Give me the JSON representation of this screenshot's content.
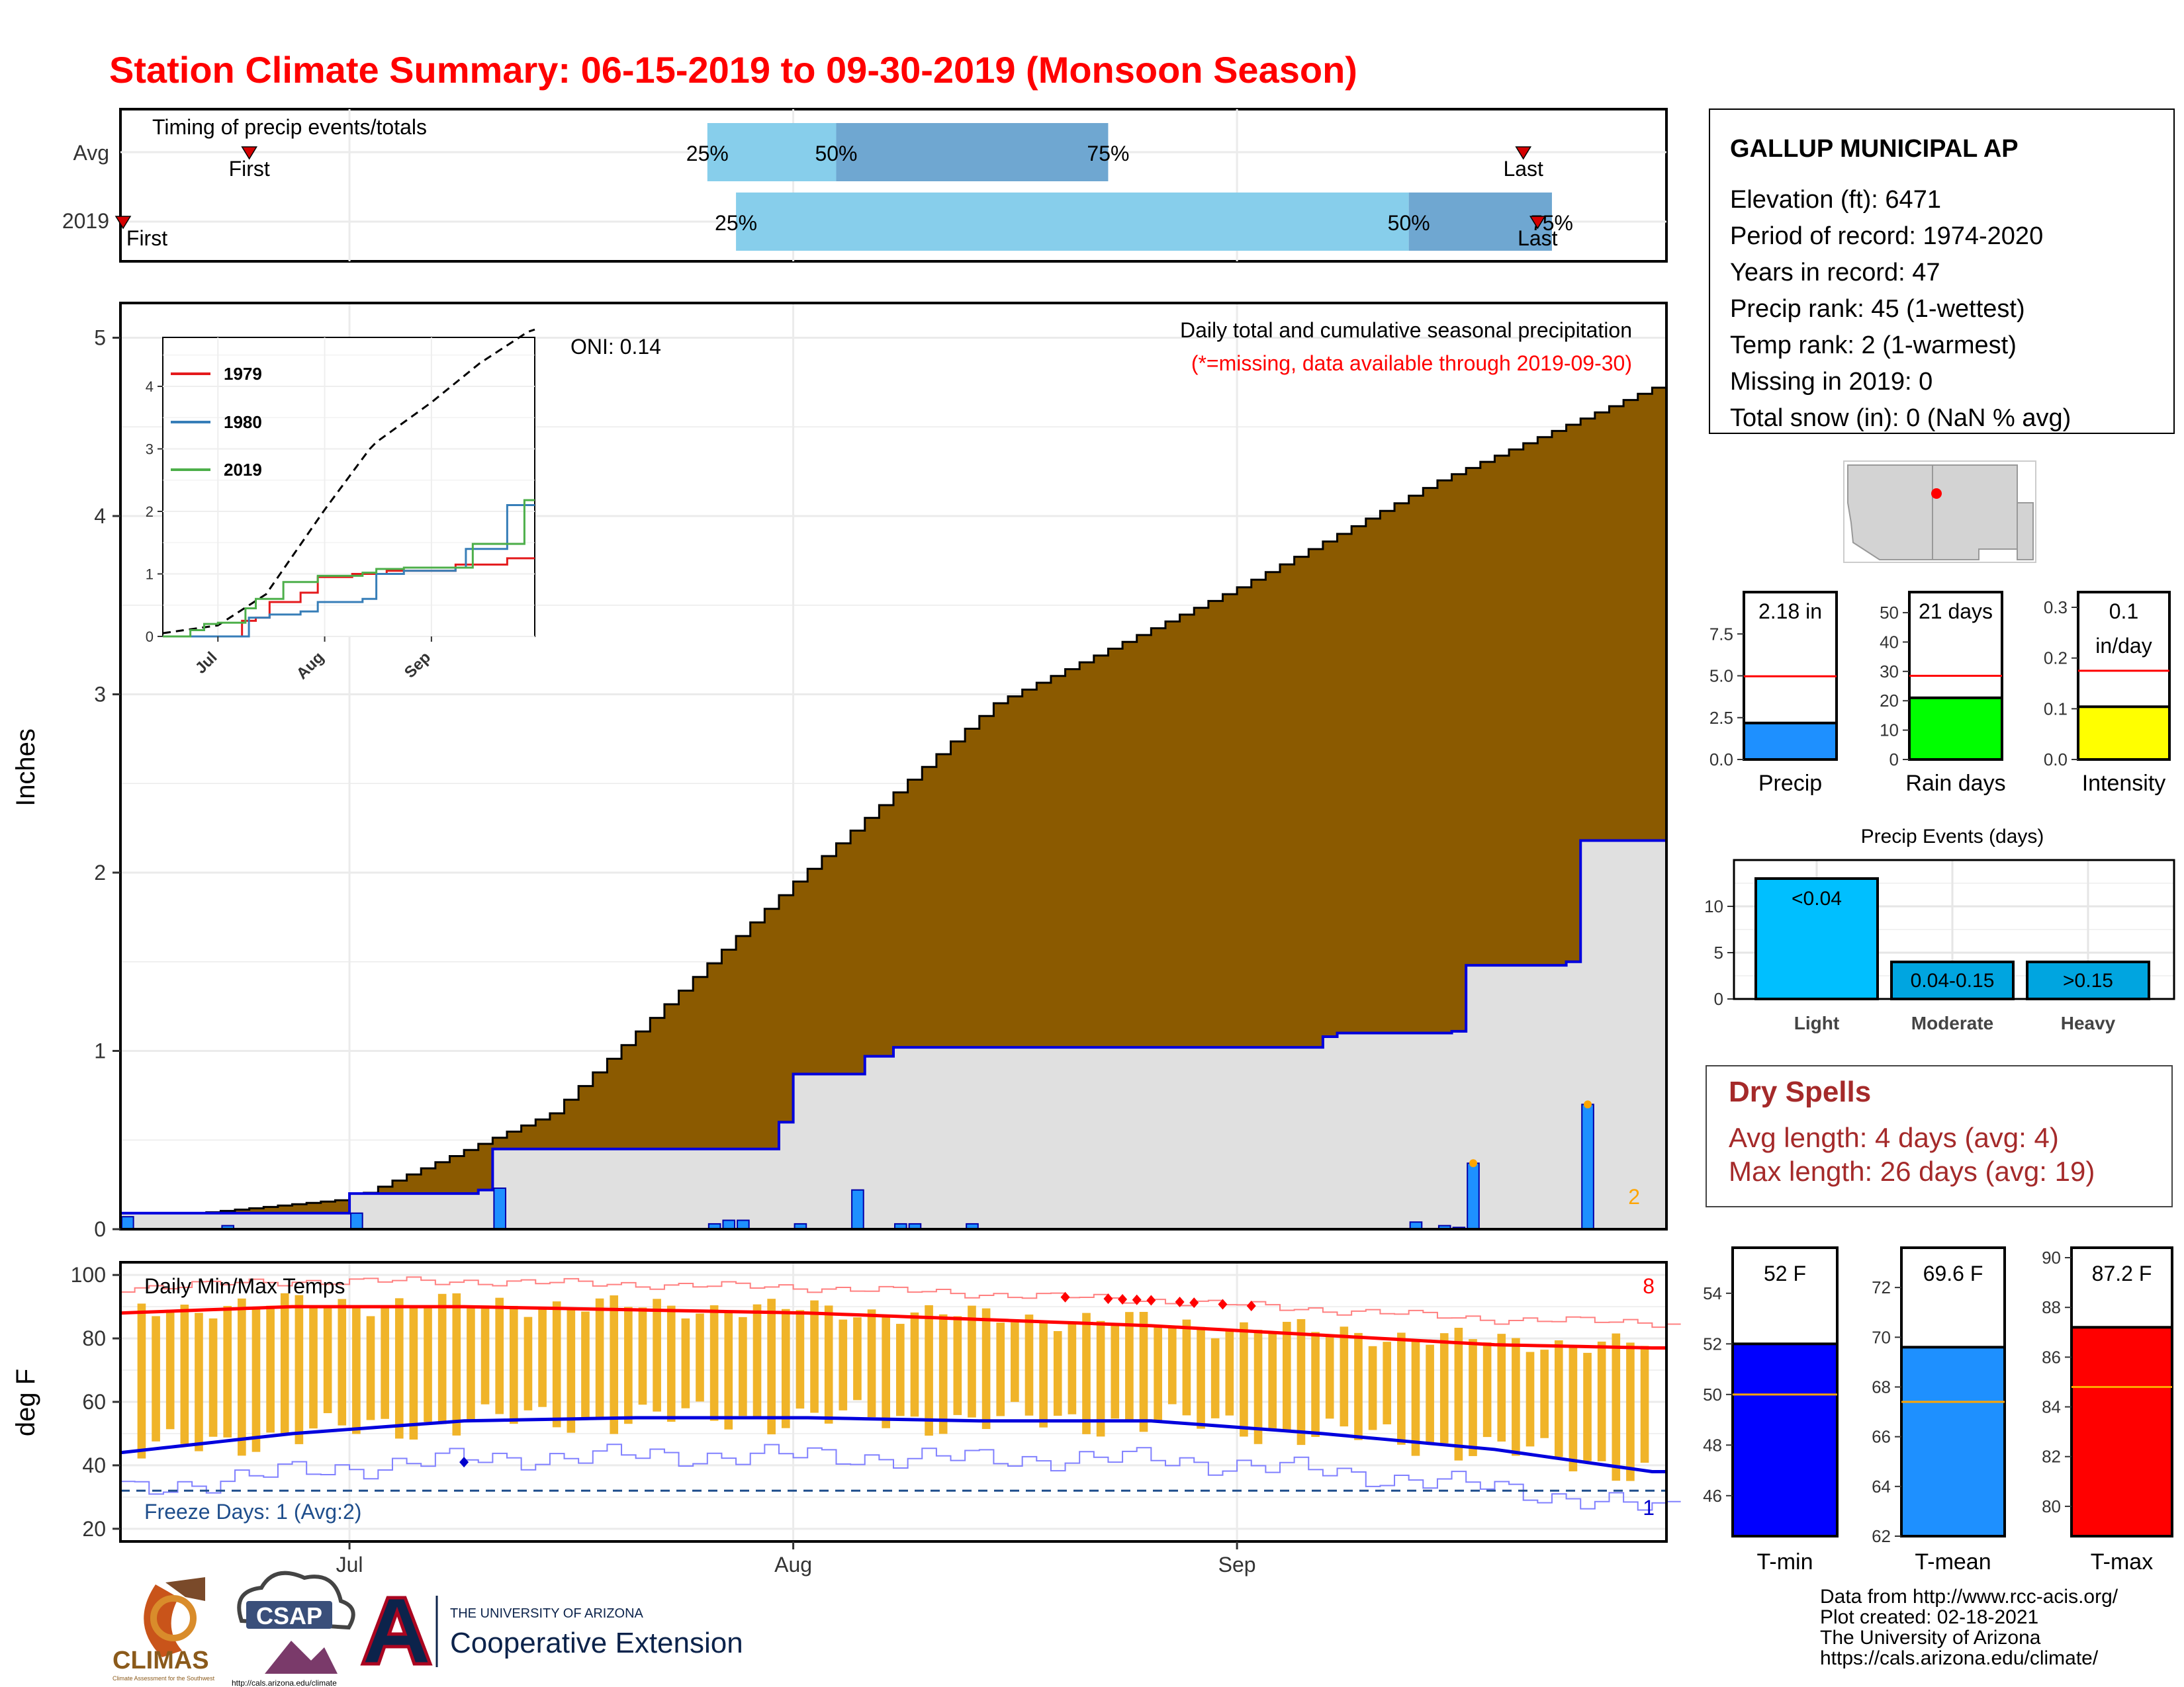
{
  "title": "Station Climate Summary: 06-15-2019 to 09-30-2019 (Monsoon Season)",
  "colors": {
    "title": "#ff0000",
    "precip_cum_avg": "#8b5a00",
    "precip_cum_2019": "#e0e0e0",
    "precip_line_2019": "#0000dd",
    "precip_bar": "#1e90ff",
    "bar_light": "#00bfff",
    "bar_mod": "#00a5e0",
    "tmin": "#0000ff",
    "tmean": "#1e90ff",
    "tmax": "#ff0000",
    "temp_bar": "#f0b429",
    "days_bar": "#00ff00",
    "intensity_bar": "#ffff00",
    "dry": "#a52a2a",
    "q_light": "#87ceeb",
    "q_dark": "#6fa7d1"
  },
  "timing": {
    "title": "Timing of precip events/totals",
    "rows": [
      {
        "label": "Avg",
        "first_label": "First",
        "last_label": "Last",
        "first": "2019-06-24",
        "last": "2019-09-21",
        "p25": "2019-07-26",
        "p50": "2019-08-04",
        "p75": "2019-08-23",
        "q25_label": "25%",
        "q50_label": "50%",
        "q75_label": "75%"
      },
      {
        "label": "2019",
        "first_label": "First",
        "last_label": "Last",
        "first": "2019-06-15",
        "last": "2019-09-22",
        "p25": "2019-07-28",
        "p50": "2019-09-13",
        "p75": "2019-09-23",
        "q25_label": "25%",
        "q50_label": "50%",
        "q75_label": "75%"
      }
    ]
  },
  "precip_panel": {
    "ylabel": "Inches",
    "annotation": "Daily total and cumulative seasonal precipitation",
    "missing_note": "(*=missing, data available through 2019-09-30)",
    "oni": "ONI: 0.14",
    "corner_count": "2",
    "y_ticks": [
      "0",
      "1",
      "2",
      "3",
      "4",
      "5"
    ]
  },
  "inset": {
    "legend": [
      {
        "name": "1979",
        "color": "#e41a1c"
      },
      {
        "name": "1980",
        "color": "#377eb8"
      },
      {
        "name": "2019",
        "color": "#4daf4a"
      }
    ],
    "x_ticks": [
      "Jul",
      "Aug",
      "Sep"
    ],
    "y_ticks": [
      "0",
      "1",
      "2",
      "3",
      "4"
    ]
  },
  "temp_panel": {
    "title": "Daily Min/Max Temps",
    "ylabel": "deg F",
    "freeze_label": "Freeze Days: 1 (Avg:2)",
    "record_high_count": "8",
    "record_low_count": "1",
    "y_ticks": [
      "20",
      "40",
      "60",
      "80",
      "100"
    ]
  },
  "x_months": [
    "Jul",
    "Aug",
    "Sep"
  ],
  "station": {
    "name": "GALLUP MUNICIPAL AP",
    "lines": [
      "Elevation (ft): 6471",
      "Period of record: 1974-2020",
      "Years in record: 47",
      "Precip rank: 45 (1-wettest)",
      "Temp rank: 2 (1-warmest)",
      "Missing in 2019: 0",
      "Total snow (in): 0 (NaN % avg)"
    ]
  },
  "mini_bars": [
    {
      "label": "Precip",
      "value_label": "2.18 in",
      "ticks": [
        "0.0",
        "2.5",
        "5.0",
        "7.5"
      ],
      "ymax": 10,
      "value": 2.18,
      "avg": 4.97
    },
    {
      "label": "Rain days",
      "value_label": "21 days",
      "ticks": [
        "0",
        "10",
        "20",
        "30",
        "40",
        "50"
      ],
      "ymax": 57,
      "value": 21,
      "avg": 28.5
    },
    {
      "label": "Intensity",
      "value_label": "0.1\nin/day",
      "ticks": [
        "0.0",
        "0.1",
        "0.2",
        "0.3"
      ],
      "ymax": 0.33,
      "value": 0.104,
      "avg": 0.175
    }
  ],
  "precip_events": {
    "title": "Precip Events (days)",
    "ticks": [
      "0",
      "5",
      "10"
    ],
    "ymax": 15,
    "bars": [
      {
        "category": "Light",
        "label": "<0.04",
        "value": 13
      },
      {
        "category": "Moderate",
        "label": "0.04-0.15",
        "value": 4
      },
      {
        "category": "Heavy",
        "label": ">0.15",
        "value": 4
      }
    ]
  },
  "dry_spells": {
    "title": "Dry Spells",
    "avg_line": "Avg length: 4 days (avg: 4)",
    "max_line": "Max length: 26 days (avg: 19)"
  },
  "temp_bars": [
    {
      "label": "T-min",
      "value_label": "52 F",
      "ticks": [
        "46",
        "48",
        "50",
        "52",
        "54"
      ],
      "ymin": 44.4,
      "ymax": 55.8,
      "value": 52.0,
      "avg": 50.0
    },
    {
      "label": "T-mean",
      "value_label": "69.6 F",
      "ticks": [
        "62",
        "64",
        "66",
        "68",
        "70",
        "72"
      ],
      "ymin": 62.0,
      "ymax": 73.6,
      "value": 69.6,
      "avg": 67.4
    },
    {
      "label": "T-max",
      "value_label": "87.2 F",
      "ticks": [
        "80",
        "82",
        "84",
        "86",
        "88",
        "90"
      ],
      "ymin": 78.8,
      "ymax": 90.4,
      "value": 87.2,
      "avg": 84.8
    }
  ],
  "credits": [
    "Data from http://www.rcc-acis.org/",
    "Plot created: 02-18-2021",
    "The University of Arizona",
    "https://cals.arizona.edu/climate/"
  ],
  "logos": {
    "climas": "CLIMAS",
    "climas_sub": "Climate Assessment for the Southwest",
    "csap": "CSAP",
    "csap_url": "http://cals.arizona.edu/climate",
    "ua_top": "THE UNIVERSITY OF ARIZONA",
    "ua_bottom": "Cooperative Extension"
  },
  "chart_data": {
    "type": "area",
    "title": "Daily total and cumulative seasonal precipitation",
    "ylabel": "Inches",
    "xlim": [
      "2019-06-15",
      "2019-09-30"
    ],
    "ylim": [
      0,
      5.2
    ],
    "series": [
      {
        "name": "cumulative average",
        "x": [
          "2019-06-15",
          "2019-07-01",
          "2019-07-15",
          "2019-08-01",
          "2019-08-15",
          "2019-09-01",
          "2019-09-15",
          "2019-09-30"
        ],
        "values": [
          0.05,
          0.17,
          0.65,
          1.95,
          2.95,
          3.6,
          4.2,
          4.72
        ]
      },
      {
        "name": "cumulative 2019",
        "x": [
          "2019-06-15",
          "2019-07-01",
          "2019-07-10",
          "2019-07-11",
          "2019-07-31",
          "2019-08-01",
          "2019-08-06",
          "2019-08-08",
          "2019-09-07",
          "2019-09-08",
          "2019-09-16",
          "2019-09-17",
          "2019-09-24",
          "2019-09-25",
          "2019-09-30"
        ],
        "values": [
          0.09,
          0.2,
          0.22,
          0.45,
          0.6,
          0.87,
          0.97,
          1.02,
          1.08,
          1.1,
          1.11,
          1.48,
          1.5,
          2.18,
          2.18
        ]
      },
      {
        "name": "daily 2019",
        "x": [
          "2019-06-15",
          "2019-06-22",
          "2019-07-01",
          "2019-07-11",
          "2019-07-26",
          "2019-07-27",
          "2019-07-28",
          "2019-08-01",
          "2019-08-05",
          "2019-08-08",
          "2019-08-09",
          "2019-08-13",
          "2019-09-13",
          "2019-09-15",
          "2019-09-16",
          "2019-09-17",
          "2019-09-25"
        ],
        "values": [
          0.07,
          0.02,
          0.09,
          0.23,
          0.03,
          0.05,
          0.05,
          0.03,
          0.22,
          0.03,
          0.03,
          0.03,
          0.04,
          0.02,
          0.01,
          0.37,
          0.7
        ]
      }
    ],
    "temperature": {
      "ylim": [
        16,
        104
      ],
      "freeze_line": 32,
      "tmax_avg": [
        88,
        90,
        90,
        89,
        88,
        86,
        84,
        81,
        78,
        77
      ],
      "tmin_avg": [
        44,
        50,
        54,
        55,
        55,
        54,
        54,
        50,
        45,
        38
      ],
      "dates": [
        "2019-06-15",
        "2019-06-27",
        "2019-07-09",
        "2019-07-21",
        "2019-08-02",
        "2019-08-14",
        "2019-08-26",
        "2019-09-07",
        "2019-09-19",
        "2019-09-30"
      ]
    }
  }
}
